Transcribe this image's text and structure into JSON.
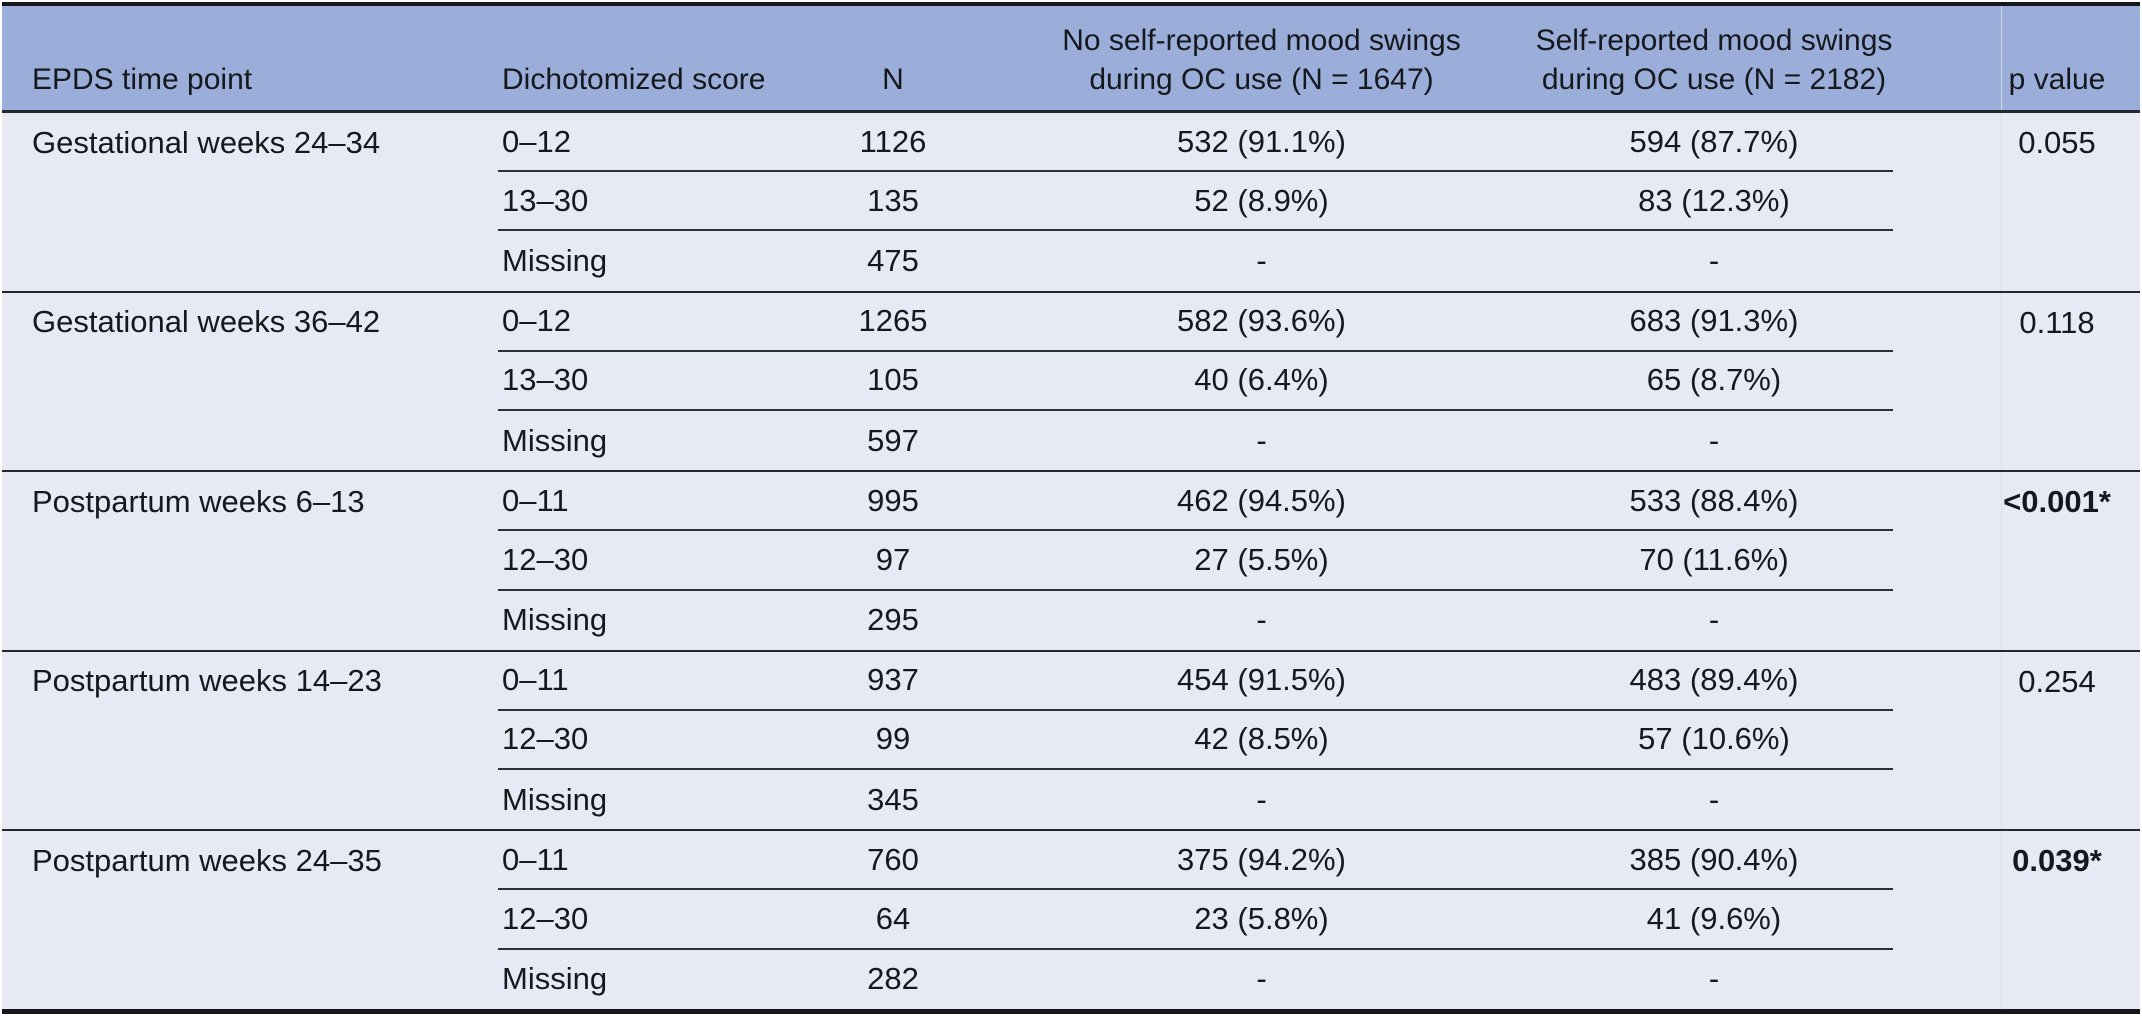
{
  "colors": {
    "header_bg": "#9aaed9",
    "row_bg": "#e7eaf4",
    "outer_border": "#15171b",
    "group_line": "#24272e",
    "subrow_line": "#2b313c"
  },
  "header": {
    "time_point": "EPDS time point",
    "score": "Dichotomized score",
    "n": "N",
    "no_mood_swings": "No self-reported mood swings\nduring OC use (N = 1647)",
    "mood_swings": "Self-reported mood swings\nduring OC use (N = 2182)",
    "p": "p value"
  },
  "groups": [
    {
      "time_point": "Gestational weeks 24–34",
      "p": "0.055",
      "p_bold": false,
      "rows": [
        {
          "score": "0–12",
          "n": "1126",
          "no_ms": "532 (91.1%)",
          "ms": "594 (87.7%)"
        },
        {
          "score": "13–30",
          "n": "135",
          "no_ms": "52 (8.9%)",
          "ms": "83 (12.3%)"
        },
        {
          "score": "Missing",
          "n": "475",
          "no_ms": "-",
          "ms": "-"
        }
      ]
    },
    {
      "time_point": "Gestational weeks 36–42",
      "p": "0.118",
      "p_bold": false,
      "rows": [
        {
          "score": "0–12",
          "n": "1265",
          "no_ms": "582 (93.6%)",
          "ms": "683 (91.3%)"
        },
        {
          "score": "13–30",
          "n": "105",
          "no_ms": "40 (6.4%)",
          "ms": "65 (8.7%)"
        },
        {
          "score": "Missing",
          "n": "597",
          "no_ms": "-",
          "ms": "-"
        }
      ]
    },
    {
      "time_point": "Postpartum weeks 6–13",
      "p": "<0.001*",
      "p_bold": true,
      "rows": [
        {
          "score": "0–11",
          "n": "995",
          "no_ms": "462 (94.5%)",
          "ms": "533 (88.4%)"
        },
        {
          "score": "12–30",
          "n": "97",
          "no_ms": "27 (5.5%)",
          "ms": "70 (11.6%)"
        },
        {
          "score": "Missing",
          "n": "295",
          "no_ms": "-",
          "ms": "-"
        }
      ]
    },
    {
      "time_point": "Postpartum weeks 14–23",
      "p": "0.254",
      "p_bold": false,
      "rows": [
        {
          "score": "0–11",
          "n": "937",
          "no_ms": "454 (91.5%)",
          "ms": "483 (89.4%)"
        },
        {
          "score": "12–30",
          "n": "99",
          "no_ms": "42 (8.5%)",
          "ms": "57 (10.6%)"
        },
        {
          "score": "Missing",
          "n": "345",
          "no_ms": "-",
          "ms": "-"
        }
      ]
    },
    {
      "time_point": "Postpartum weeks 24–35",
      "p": "0.039*",
      "p_bold": true,
      "rows": [
        {
          "score": "0–11",
          "n": "760",
          "no_ms": "375 (94.2%)",
          "ms": "385 (90.4%)"
        },
        {
          "score": "12–30",
          "n": "64",
          "no_ms": "23 (5.8%)",
          "ms": "41 (9.6%)"
        },
        {
          "score": "Missing",
          "n": "282",
          "no_ms": "-",
          "ms": "-"
        }
      ]
    }
  ]
}
